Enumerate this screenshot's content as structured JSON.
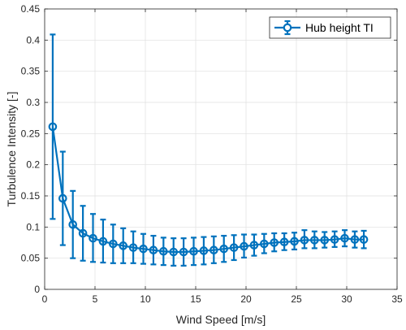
{
  "chart_data": {
    "type": "line",
    "xlabel": "Wind Speed [m/s]",
    "ylabel": "Turbulence Intensity [-]",
    "xlim": [
      0,
      35
    ],
    "ylim": [
      0,
      0.45
    ],
    "xticks": [
      "0",
      "5",
      "10",
      "15",
      "20",
      "25",
      "30",
      "35"
    ],
    "yticks": [
      "0",
      "0.05",
      "0.1",
      "0.15",
      "0.2",
      "0.25",
      "0.3",
      "0.35",
      "0.4",
      "0.45"
    ],
    "grid": true,
    "legend_position": "top-right",
    "color": "#0072BD",
    "series": [
      {
        "name": "Hub height TI",
        "x": [
          0.8,
          1.8,
          2.8,
          3.8,
          4.8,
          5.8,
          6.8,
          7.8,
          8.8,
          9.8,
          10.8,
          11.8,
          12.8,
          13.8,
          14.8,
          15.8,
          16.8,
          17.8,
          18.8,
          19.8,
          20.8,
          21.8,
          22.8,
          23.8,
          24.8,
          25.8,
          26.8,
          27.8,
          28.8,
          29.8,
          30.8,
          31.7
        ],
        "y": [
          0.261,
          0.146,
          0.104,
          0.09,
          0.082,
          0.077,
          0.073,
          0.07,
          0.067,
          0.065,
          0.063,
          0.061,
          0.06,
          0.06,
          0.061,
          0.062,
          0.063,
          0.065,
          0.067,
          0.069,
          0.071,
          0.073,
          0.075,
          0.076,
          0.077,
          0.079,
          0.079,
          0.079,
          0.08,
          0.082,
          0.08,
          0.08
        ],
        "lower": [
          0.113,
          0.071,
          0.05,
          0.046,
          0.044,
          0.043,
          0.042,
          0.042,
          0.042,
          0.041,
          0.04,
          0.039,
          0.038,
          0.038,
          0.039,
          0.04,
          0.042,
          0.044,
          0.047,
          0.051,
          0.054,
          0.058,
          0.061,
          0.063,
          0.064,
          0.066,
          0.066,
          0.067,
          0.068,
          0.069,
          0.067,
          0.066
        ],
        "upper": [
          0.409,
          0.221,
          0.158,
          0.134,
          0.121,
          0.112,
          0.104,
          0.098,
          0.093,
          0.089,
          0.086,
          0.083,
          0.082,
          0.082,
          0.083,
          0.084,
          0.085,
          0.086,
          0.087,
          0.088,
          0.088,
          0.089,
          0.09,
          0.09,
          0.091,
          0.095,
          0.093,
          0.092,
          0.093,
          0.095,
          0.093,
          0.094
        ]
      }
    ]
  }
}
